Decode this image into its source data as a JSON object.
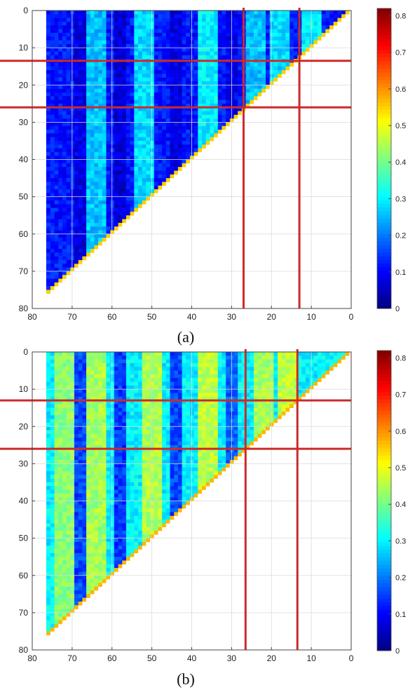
{
  "chart_data": [
    {
      "type": "heatmap",
      "caption": "(a)",
      "shape": "upper-triangle",
      "x_reversed": true,
      "y_reversed": true,
      "xlim": [
        80,
        0
      ],
      "ylim": [
        0,
        80
      ],
      "x_ticks": [
        80,
        70,
        60,
        50,
        40,
        30,
        20,
        10,
        0
      ],
      "y_ticks": [
        0,
        10,
        20,
        30,
        40,
        50,
        60,
        70,
        80
      ],
      "grid": true,
      "value_range": [
        0,
        0.82
      ],
      "colormap": "jet",
      "colorbar_ticks": [
        0,
        0.1,
        0.2,
        0.3,
        0.4,
        0.5,
        0.6,
        0.7,
        0.8
      ],
      "colorbar_labels": [
        "0",
        "0.1",
        "0.2",
        "0.3",
        "0.4",
        "0.5",
        "0.6",
        "0.7",
        "0.8"
      ],
      "base_level": 0.12,
      "diagonal_value": 0.55,
      "bright_columns": [
        {
          "x": 64,
          "value": 0.26
        },
        {
          "x": 52,
          "value": 0.28
        },
        {
          "x": 36,
          "value": 0.3
        },
        {
          "x": 24,
          "value": 0.26
        },
        {
          "x": 18,
          "value": 0.28
        },
        {
          "x": 10,
          "value": 0.3
        }
      ],
      "dark_columns": [
        {
          "x": 68,
          "value": 0.08
        },
        {
          "x": 58,
          "value": 0.07
        },
        {
          "x": 44,
          "value": 0.08
        },
        {
          "x": 30,
          "value": 0.09
        }
      ],
      "reference_lines": {
        "vertical_x": [
          27,
          13
        ],
        "horizontal_y": [
          13.5,
          26
        ]
      }
    },
    {
      "type": "heatmap",
      "caption": "(b)",
      "shape": "upper-triangle",
      "x_reversed": true,
      "y_reversed": true,
      "xlim": [
        80,
        0
      ],
      "ylim": [
        0,
        80
      ],
      "x_ticks": [
        80,
        70,
        60,
        50,
        40,
        30,
        20,
        10,
        0
      ],
      "y_ticks": [
        0,
        10,
        20,
        30,
        40,
        50,
        60,
        70,
        80
      ],
      "grid": true,
      "value_range": [
        0,
        0.82
      ],
      "colormap": "jet",
      "colorbar_ticks": [
        0,
        0.1,
        0.2,
        0.3,
        0.4,
        0.5,
        0.6,
        0.7,
        0.8
      ],
      "colorbar_labels": [
        "0",
        "0.1",
        "0.2",
        "0.3",
        "0.4",
        "0.5",
        "0.6",
        "0.7",
        "0.8"
      ],
      "base_level": 0.3,
      "diagonal_value": 0.57,
      "bright_columns": [
        {
          "x": 72,
          "value": 0.42
        },
        {
          "x": 64,
          "value": 0.44
        },
        {
          "x": 50,
          "value": 0.45
        },
        {
          "x": 36,
          "value": 0.46
        },
        {
          "x": 22,
          "value": 0.44
        },
        {
          "x": 16,
          "value": 0.46
        }
      ],
      "dark_columns": [
        {
          "x": 68,
          "value": 0.16
        },
        {
          "x": 58,
          "value": 0.15
        },
        {
          "x": 44,
          "value": 0.16
        },
        {
          "x": 30,
          "value": 0.18
        }
      ],
      "reference_lines": {
        "vertical_x": [
          26.5,
          13.5
        ],
        "horizontal_y": [
          13,
          26
        ]
      }
    }
  ]
}
